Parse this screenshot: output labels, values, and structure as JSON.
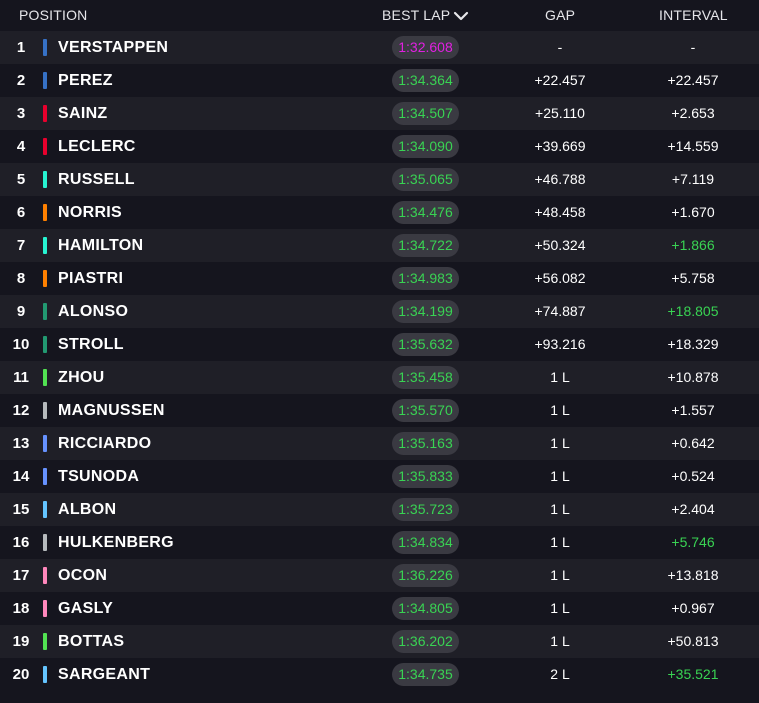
{
  "header": {
    "position": "POSITION",
    "best_lap": "BEST LAP",
    "gap": "GAP",
    "interval": "INTERVAL",
    "sort_icon": "chevron-down-icon"
  },
  "colors": {
    "personal_best": "#39d353",
    "overall_best": "#e020e0",
    "default_text": "#ffffff"
  },
  "rows": [
    {
      "pos": "1",
      "driver": "VERSTAPPEN",
      "team_color": "#3671c6",
      "best_lap": "1:32.608",
      "lap_color": "#e020e0",
      "gap": "-",
      "interval": "-",
      "interval_color": "#ffffff"
    },
    {
      "pos": "2",
      "driver": "PEREZ",
      "team_color": "#3671c6",
      "best_lap": "1:34.364",
      "lap_color": "#39d353",
      "gap": "+22.457",
      "interval": "+22.457",
      "interval_color": "#ffffff"
    },
    {
      "pos": "3",
      "driver": "SAINZ",
      "team_color": "#e8002d",
      "best_lap": "1:34.507",
      "lap_color": "#39d353",
      "gap": "+25.110",
      "interval": "+2.653",
      "interval_color": "#ffffff"
    },
    {
      "pos": "4",
      "driver": "LECLERC",
      "team_color": "#e8002d",
      "best_lap": "1:34.090",
      "lap_color": "#39d353",
      "gap": "+39.669",
      "interval": "+14.559",
      "interval_color": "#ffffff"
    },
    {
      "pos": "5",
      "driver": "RUSSELL",
      "team_color": "#27f4d2",
      "best_lap": "1:35.065",
      "lap_color": "#39d353",
      "gap": "+46.788",
      "interval": "+7.119",
      "interval_color": "#ffffff"
    },
    {
      "pos": "6",
      "driver": "NORRIS",
      "team_color": "#ff8000",
      "best_lap": "1:34.476",
      "lap_color": "#39d353",
      "gap": "+48.458",
      "interval": "+1.670",
      "interval_color": "#ffffff"
    },
    {
      "pos": "7",
      "driver": "HAMILTON",
      "team_color": "#27f4d2",
      "best_lap": "1:34.722",
      "lap_color": "#39d353",
      "gap": "+50.324",
      "interval": "+1.866",
      "interval_color": "#39d353"
    },
    {
      "pos": "8",
      "driver": "PIASTRI",
      "team_color": "#ff8000",
      "best_lap": "1:34.983",
      "lap_color": "#39d353",
      "gap": "+56.082",
      "interval": "+5.758",
      "interval_color": "#ffffff"
    },
    {
      "pos": "9",
      "driver": "ALONSO",
      "team_color": "#229971",
      "best_lap": "1:34.199",
      "lap_color": "#39d353",
      "gap": "+74.887",
      "interval": "+18.805",
      "interval_color": "#39d353"
    },
    {
      "pos": "10",
      "driver": "STROLL",
      "team_color": "#229971",
      "best_lap": "1:35.632",
      "lap_color": "#39d353",
      "gap": "+93.216",
      "interval": "+18.329",
      "interval_color": "#ffffff"
    },
    {
      "pos": "11",
      "driver": "ZHOU",
      "team_color": "#52e252",
      "best_lap": "1:35.458",
      "lap_color": "#39d353",
      "gap": "1 L",
      "interval": "+10.878",
      "interval_color": "#ffffff"
    },
    {
      "pos": "12",
      "driver": "MAGNUSSEN",
      "team_color": "#b6babd",
      "best_lap": "1:35.570",
      "lap_color": "#39d353",
      "gap": "1 L",
      "interval": "+1.557",
      "interval_color": "#ffffff"
    },
    {
      "pos": "13",
      "driver": "RICCIARDO",
      "team_color": "#6692ff",
      "best_lap": "1:35.163",
      "lap_color": "#39d353",
      "gap": "1 L",
      "interval": "+0.642",
      "interval_color": "#ffffff"
    },
    {
      "pos": "14",
      "driver": "TSUNODA",
      "team_color": "#6692ff",
      "best_lap": "1:35.833",
      "lap_color": "#39d353",
      "gap": "1 L",
      "interval": "+0.524",
      "interval_color": "#ffffff"
    },
    {
      "pos": "15",
      "driver": "ALBON",
      "team_color": "#64c4ff",
      "best_lap": "1:35.723",
      "lap_color": "#39d353",
      "gap": "1 L",
      "interval": "+2.404",
      "interval_color": "#ffffff"
    },
    {
      "pos": "16",
      "driver": "HULKENBERG",
      "team_color": "#b6babd",
      "best_lap": "1:34.834",
      "lap_color": "#39d353",
      "gap": "1 L",
      "interval": "+5.746",
      "interval_color": "#39d353"
    },
    {
      "pos": "17",
      "driver": "OCON",
      "team_color": "#ff87bc",
      "best_lap": "1:36.226",
      "lap_color": "#39d353",
      "gap": "1 L",
      "interval": "+13.818",
      "interval_color": "#ffffff"
    },
    {
      "pos": "18",
      "driver": "GASLY",
      "team_color": "#ff87bc",
      "best_lap": "1:34.805",
      "lap_color": "#39d353",
      "gap": "1 L",
      "interval": "+0.967",
      "interval_color": "#ffffff"
    },
    {
      "pos": "19",
      "driver": "BOTTAS",
      "team_color": "#52e252",
      "best_lap": "1:36.202",
      "lap_color": "#39d353",
      "gap": "1 L",
      "interval": "+50.813",
      "interval_color": "#ffffff"
    },
    {
      "pos": "20",
      "driver": "SARGEANT",
      "team_color": "#64c4ff",
      "best_lap": "1:34.735",
      "lap_color": "#39d353",
      "gap": "2 L",
      "interval": "+35.521",
      "interval_color": "#39d353"
    }
  ]
}
